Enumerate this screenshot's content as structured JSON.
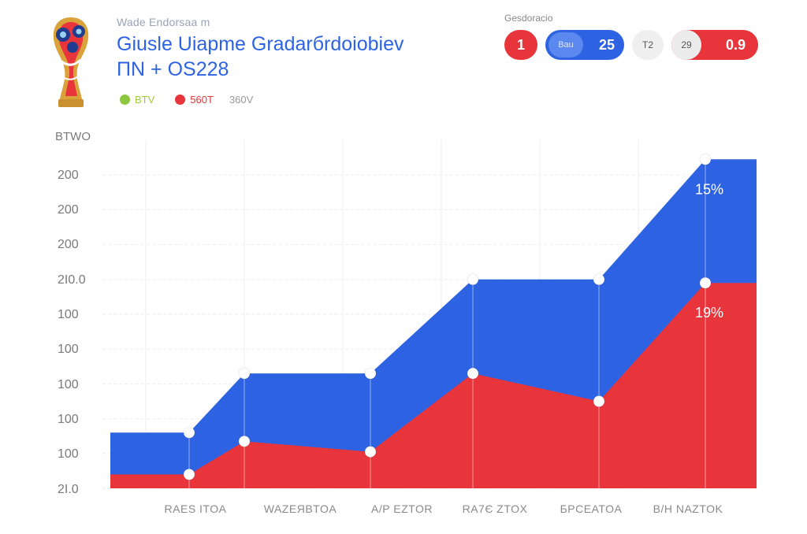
{
  "header": {
    "supertitle": "Wade Endorsaa m",
    "title": "Giusle Uiapme Gradarбrdoiobiev",
    "subtitle": "ΠN + OS228"
  },
  "legend": [
    {
      "label": "BTV",
      "color": "#8dc63f"
    },
    {
      "label": "560T",
      "color": "#e8343b"
    },
    {
      "label": "360V",
      "color": ""
    }
  ],
  "scoreboard": {
    "caption": "Gesdoracio",
    "items": [
      {
        "value": "1",
        "color": "#e8343b"
      },
      {
        "label": "Bau",
        "value": "25",
        "color": "#2d63e2"
      },
      {
        "value": "T2",
        "color": "#efefef"
      },
      {
        "label": "29",
        "value": "0.9",
        "color": "#e8343b"
      }
    ]
  },
  "chart_data": {
    "type": "area",
    "y_title": "BTWO",
    "y_tick_labels": [
      "2I.0",
      "100",
      "100",
      "100",
      "100",
      "100",
      "2I0.0",
      "200",
      "200",
      "200"
    ],
    "x_tick_labels": [
      "RAES ITOA",
      "WAZEЯBTOA",
      "A/P EZTOR",
      "RA7Є ZTOX",
      "БPCEATOA",
      "B/H NAZTOK"
    ],
    "series": [
      {
        "name": "",
        "color": "#e8343b",
        "points": [
          [
            0,
            0.4
          ],
          [
            1,
            0.4
          ],
          [
            1.7,
            1.35
          ],
          [
            3.3,
            1.05
          ],
          [
            4.6,
            3.3
          ],
          [
            6.2,
            2.5
          ],
          [
            7.55,
            5.9
          ],
          [
            8.2,
            5.9
          ]
        ],
        "marker_indices": [
          1,
          2,
          3,
          4,
          5,
          6
        ],
        "annotation": "19%"
      },
      {
        "name": "",
        "color": "#2d63e2",
        "points": [
          [
            0,
            1.6
          ],
          [
            1,
            1.6
          ],
          [
            1.7,
            3.3
          ],
          [
            3.3,
            3.3
          ],
          [
            4.6,
            6.0
          ],
          [
            6.2,
            6.0
          ],
          [
            7.55,
            9.45
          ],
          [
            8.2,
            9.45
          ]
        ],
        "marker_indices": [
          1,
          2,
          3,
          4,
          5,
          6
        ],
        "annotation": "15%"
      }
    ],
    "grid": true
  }
}
